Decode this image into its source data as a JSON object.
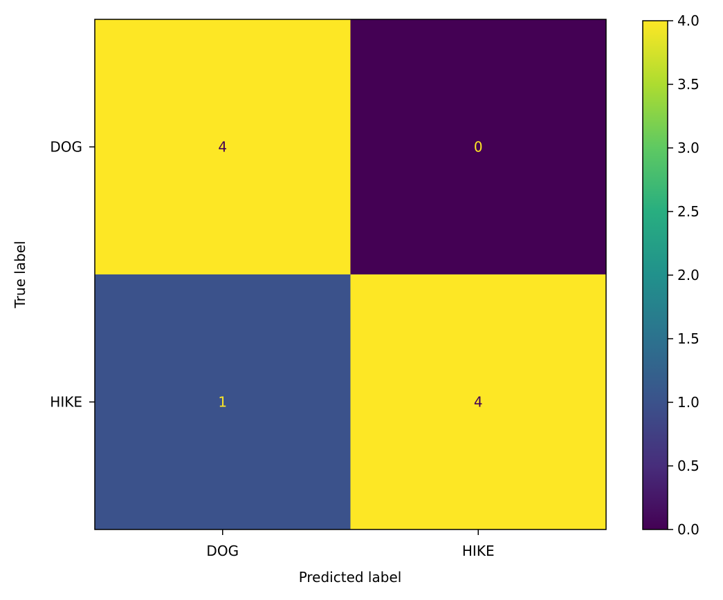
{
  "chart_data": {
    "type": "heatmap",
    "title": "",
    "xlabel": "Predicted label",
    "ylabel": "True label",
    "x_categories": [
      "DOG",
      "HIKE"
    ],
    "y_categories": [
      "DOG",
      "HIKE"
    ],
    "values": [
      [
        4,
        0
      ],
      [
        1,
        4
      ]
    ],
    "colorbar": {
      "min": 0.0,
      "max": 4.0,
      "ticks": [
        "0.0",
        "0.5",
        "1.0",
        "1.5",
        "2.0",
        "2.5",
        "3.0",
        "3.5",
        "4.0"
      ],
      "colormap": "viridis"
    },
    "grid": false
  }
}
